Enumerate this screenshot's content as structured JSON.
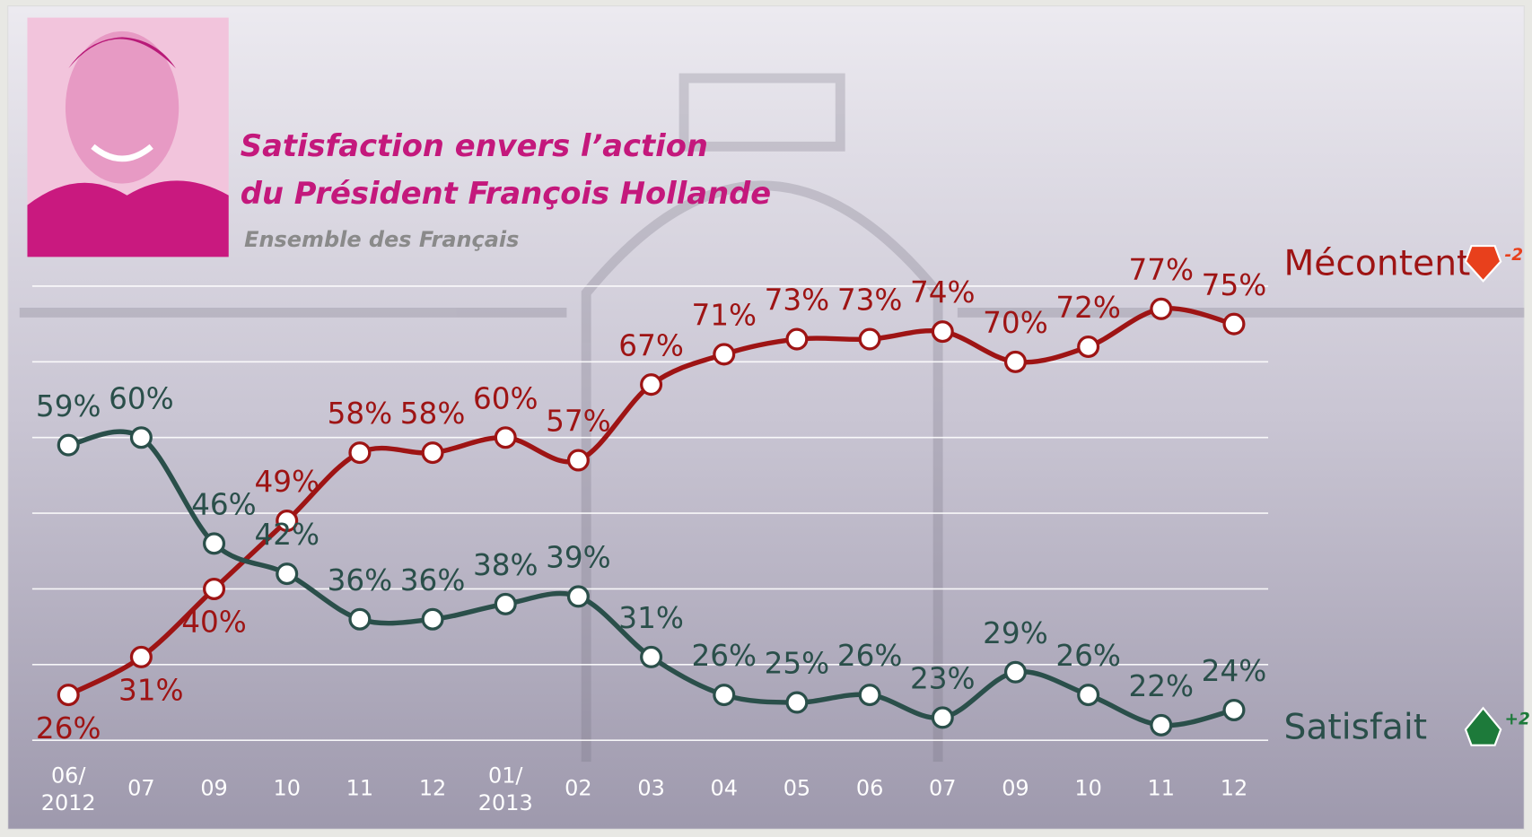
{
  "chart_data": {
    "type": "line",
    "title": [
      "Satisfaction envers l’action",
      "du Président François Hollande"
    ],
    "subtitle": "Ensemble des Français",
    "categories": [
      "06/2012",
      "07",
      "09",
      "10",
      "11",
      "12",
      "01/2013",
      "02",
      "03",
      "04",
      "05",
      "06",
      "07",
      "09",
      "10",
      "11",
      "12"
    ],
    "ylim": [
      20,
      80
    ],
    "yticks": [
      20,
      30,
      40,
      50,
      60,
      70,
      80
    ],
    "grid": true,
    "series": [
      {
        "name": "Mécontent",
        "color": "#9e1414",
        "change": "-2",
        "change_color": "#e8401c",
        "values": [
          26,
          31,
          40,
          49,
          58,
          58,
          60,
          57,
          67,
          71,
          73,
          73,
          74,
          70,
          72,
          77,
          75
        ],
        "value_labels": [
          "26%",
          "31%",
          "40%",
          "49%",
          "58%",
          "58%",
          "60%",
          "57%",
          "67%",
          "71%",
          "73%",
          "73%",
          "74%",
          "70%",
          "72%",
          "77%",
          "75%"
        ]
      },
      {
        "name": "Satisfait",
        "color": "#2a4f4a",
        "change": "+2",
        "change_color": "#1d7a3a",
        "values": [
          59,
          60,
          46,
          42,
          36,
          36,
          38,
          39,
          31,
          26,
          25,
          26,
          23,
          29,
          26,
          22,
          24
        ],
        "value_labels": [
          "59%",
          "60%",
          "46%",
          "42%",
          "36%",
          "36%",
          "38%",
          "39%",
          "31%",
          "26%",
          "25%",
          "26%",
          "23%",
          "29%",
          "26%",
          "22%",
          "24%"
        ]
      }
    ]
  }
}
